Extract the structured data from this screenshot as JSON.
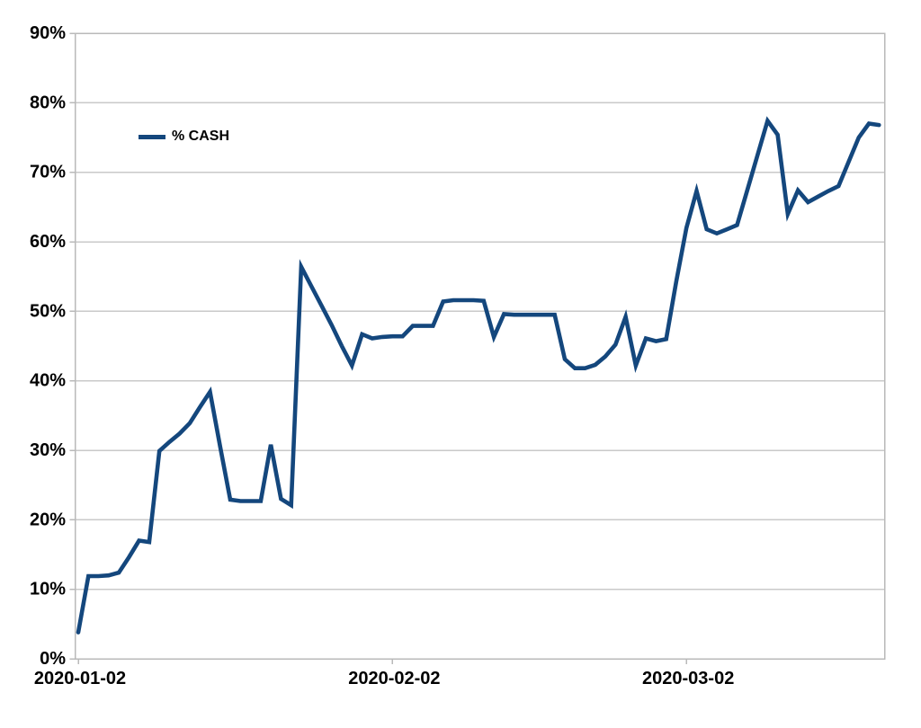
{
  "chart": {
    "background": "#ffffff",
    "series_color": "#14477d",
    "grid_color": "#c9c9c9",
    "axis_color": "#b9b9b9",
    "label_color": "#000000"
  },
  "chart_data": {
    "type": "line",
    "title": "",
    "xlabel": "",
    "ylabel": "",
    "grid": "horizontal",
    "ylim": [
      0,
      90
    ],
    "y_tick_values": [
      0,
      10,
      20,
      30,
      40,
      50,
      60,
      70,
      80,
      90
    ],
    "y_tick_labels": [
      "0%",
      "10%",
      "20%",
      "30%",
      "40%",
      "50%",
      "60%",
      "70%",
      "80%",
      "90%"
    ],
    "x_tick_labels": [
      "2020-01-02",
      "2020-02-02",
      "2020-03-02"
    ],
    "x_tick_indices": [
      0,
      31,
      60
    ],
    "legend": {
      "label": "% CASH",
      "position": "inside-top-left"
    },
    "x": [
      "2020-01-02",
      "2020-01-03",
      "2020-01-04",
      "2020-01-05",
      "2020-01-06",
      "2020-01-07",
      "2020-01-08",
      "2020-01-09",
      "2020-01-10",
      "2020-01-11",
      "2020-01-12",
      "2020-01-13",
      "2020-01-14",
      "2020-01-15",
      "2020-01-16",
      "2020-01-17",
      "2020-01-18",
      "2020-01-19",
      "2020-01-20",
      "2020-01-21",
      "2020-01-22",
      "2020-01-23",
      "2020-01-24",
      "2020-01-25",
      "2020-01-26",
      "2020-01-27",
      "2020-01-28",
      "2020-01-29",
      "2020-01-30",
      "2020-01-31",
      "2020-02-01",
      "2020-02-02",
      "2020-02-03",
      "2020-02-04",
      "2020-02-05",
      "2020-02-06",
      "2020-02-07",
      "2020-02-08",
      "2020-02-09",
      "2020-02-10",
      "2020-02-11",
      "2020-02-12",
      "2020-02-13",
      "2020-02-14",
      "2020-02-15",
      "2020-02-16",
      "2020-02-17",
      "2020-02-18",
      "2020-02-19",
      "2020-02-20",
      "2020-02-21",
      "2020-02-22",
      "2020-02-23",
      "2020-02-24",
      "2020-02-25",
      "2020-02-26",
      "2020-02-27",
      "2020-02-28",
      "2020-02-29",
      "2020-03-01",
      "2020-03-02",
      "2020-03-03",
      "2020-03-04",
      "2020-03-05",
      "2020-03-06",
      "2020-03-07",
      "2020-03-08",
      "2020-03-09",
      "2020-03-10",
      "2020-03-11",
      "2020-03-12",
      "2020-03-13",
      "2020-03-14",
      "2020-03-15",
      "2020-03-16",
      "2020-03-17",
      "2020-03-18",
      "2020-03-19",
      "2020-03-20",
      "2020-03-21"
    ],
    "series": [
      {
        "name": "% CASH",
        "color": "#14477d",
        "values": [
          3.8,
          11.9,
          11.9,
          12.0,
          12.4,
          14.6,
          17.0,
          16.8,
          29.9,
          31.2,
          32.4,
          33.9,
          36.2,
          38.4,
          30.5,
          22.9,
          22.7,
          22.7,
          22.7,
          30.8,
          23.0,
          22.1,
          56.4,
          53.6,
          50.8,
          48.0,
          45.0,
          42.2,
          46.7,
          46.1,
          46.3,
          46.4,
          46.4,
          47.9,
          47.9,
          47.9,
          51.4,
          51.6,
          51.6,
          51.6,
          51.5,
          46.3,
          49.6,
          49.5,
          49.5,
          49.5,
          49.5,
          49.5,
          43.1,
          41.8,
          41.8,
          42.3,
          43.5,
          45.2,
          49.2,
          42.2,
          46.1,
          45.7,
          46.0,
          54.3,
          62.0,
          67.3,
          61.8,
          61.2,
          61.8,
          62.4,
          67.4,
          72.4,
          77.4,
          75.4,
          64.0,
          67.4,
          65.7,
          66.5,
          67.3,
          68.0,
          71.5,
          75.0,
          77.0,
          76.8
        ]
      }
    ]
  }
}
